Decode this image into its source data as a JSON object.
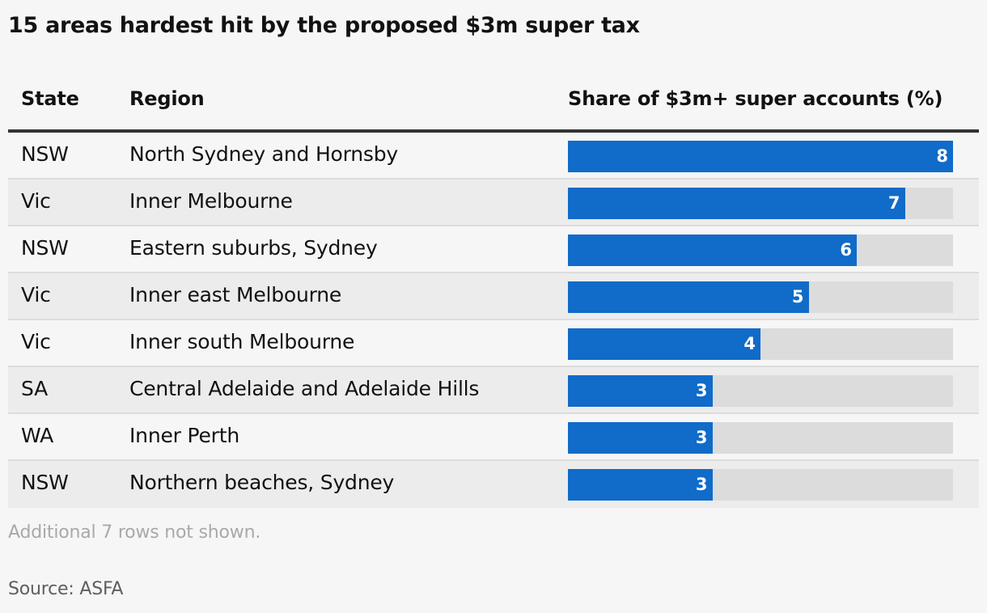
{
  "title": "15 areas hardest hit by the proposed $3m super tax",
  "columns": {
    "state": "State",
    "region": "Region",
    "share": "Share of $3m+ super accounts (%)"
  },
  "colors": {
    "bar": "#106bc9",
    "track": "#dcdcdc",
    "background": "#f6f6f6",
    "row_alt": "#ececec"
  },
  "chart_data": {
    "type": "bar",
    "orientation": "horizontal",
    "title": "15 areas hardest hit by the proposed $3m super tax",
    "value_label": "Share of $3m+ super accounts (%)",
    "xlim": [
      0,
      8
    ],
    "rows": [
      {
        "state": "NSW",
        "region": "North Sydney and Hornsby",
        "value": 8
      },
      {
        "state": "Vic",
        "region": "Inner Melbourne",
        "value": 7
      },
      {
        "state": "NSW",
        "region": "Eastern suburbs, Sydney",
        "value": 6
      },
      {
        "state": "Vic",
        "region": "Inner east Melbourne",
        "value": 5
      },
      {
        "state": "Vic",
        "region": "Inner south Melbourne",
        "value": 4
      },
      {
        "state": "SA",
        "region": "Central Adelaide and Adelaide Hills",
        "value": 3
      },
      {
        "state": "WA",
        "region": "Inner Perth",
        "value": 3
      },
      {
        "state": "NSW",
        "region": "Northern beaches, Sydney",
        "value": 3
      }
    ]
  },
  "footer": {
    "note": "Additional 7 rows not shown.",
    "source": "Source: ASFA"
  }
}
